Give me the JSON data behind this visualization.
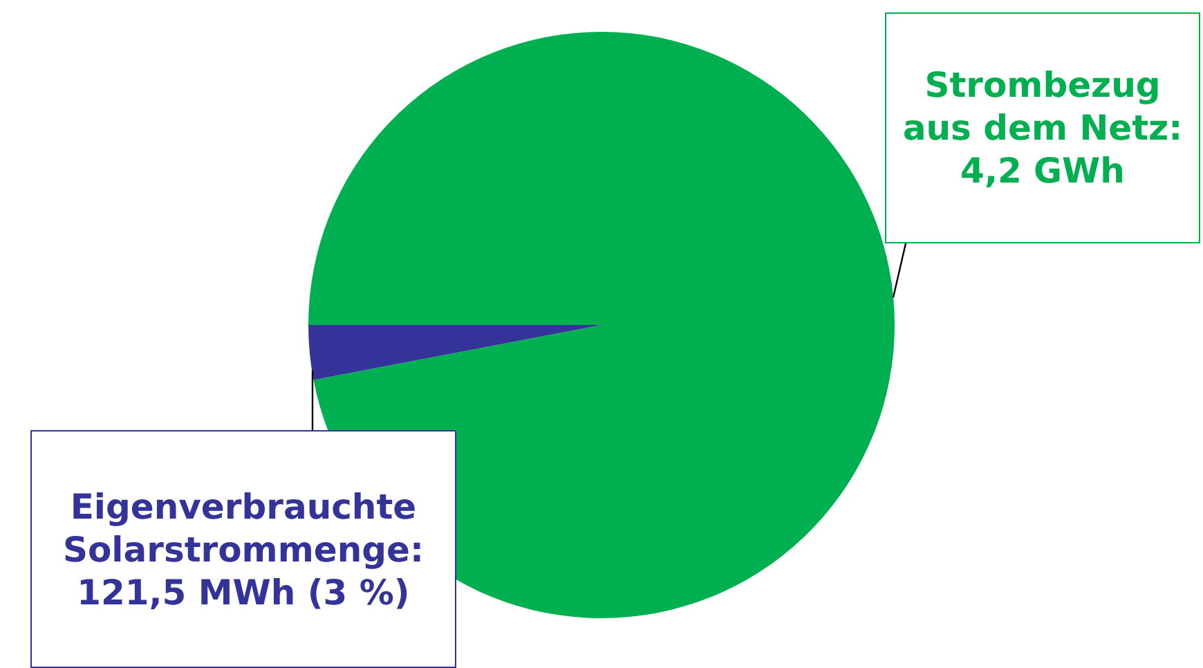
{
  "chart_data": {
    "type": "pie",
    "categories": [
      null,
      null
    ],
    "values": [
      97,
      3
    ],
    "colors": [
      "#00b050",
      "#333399"
    ],
    "annotations": [
      "Strombezug aus dem Netz: 4,2 GWh",
      "Eigenverbrauchte Solarstrommenge: 121,5 MWh (3 %)"
    ]
  }
}
